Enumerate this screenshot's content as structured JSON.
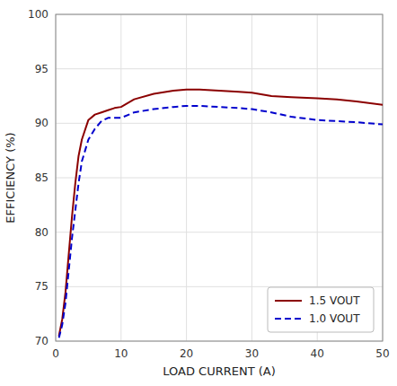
{
  "chart_data": {
    "type": "line",
    "xlabel": "LOAD CURRENT (A)",
    "ylabel": "EFFICIENCY (%)",
    "x": [
      0.5,
      1.0,
      1.5,
      2.0,
      2.5,
      3.0,
      3.5,
      4.0,
      5.0,
      6.0,
      7.0,
      8.0,
      9.0,
      10.0,
      12.0,
      15.0,
      18.0,
      20.0,
      22.0,
      25.0,
      28.0,
      30.0,
      33.0,
      36.0,
      40.0,
      43.0,
      46.0,
      50.0
    ],
    "series": [
      {
        "name": "1.5 VOUT",
        "color": "#8B0000",
        "line_style": "solid",
        "values": [
          70.5,
          72.0,
          74.5,
          78.0,
          81.5,
          84.5,
          87.0,
          88.5,
          90.3,
          90.8,
          91.0,
          91.2,
          91.4,
          91.5,
          92.2,
          92.7,
          93.0,
          93.1,
          93.1,
          93.0,
          92.9,
          92.8,
          92.5,
          92.4,
          92.3,
          92.2,
          92.0,
          91.7
        ]
      },
      {
        "name": "1.0 VOUT",
        "color": "#0000CD",
        "line_style": "dashed",
        "values": [
          70.3,
          71.5,
          73.5,
          76.5,
          79.5,
          82.0,
          84.5,
          86.5,
          88.5,
          89.5,
          90.2,
          90.5,
          90.5,
          90.5,
          91.0,
          91.3,
          91.5,
          91.6,
          91.6,
          91.5,
          91.4,
          91.3,
          91.0,
          90.6,
          90.3,
          90.2,
          90.1,
          89.9
        ]
      }
    ],
    "xlim": [
      0,
      50
    ],
    "ylim": [
      70,
      100
    ],
    "xticks": [
      0,
      10,
      20,
      30,
      40,
      50
    ],
    "yticks": [
      70,
      75,
      80,
      85,
      90,
      95,
      100
    ],
    "grid": true,
    "legend": "lower right"
  }
}
